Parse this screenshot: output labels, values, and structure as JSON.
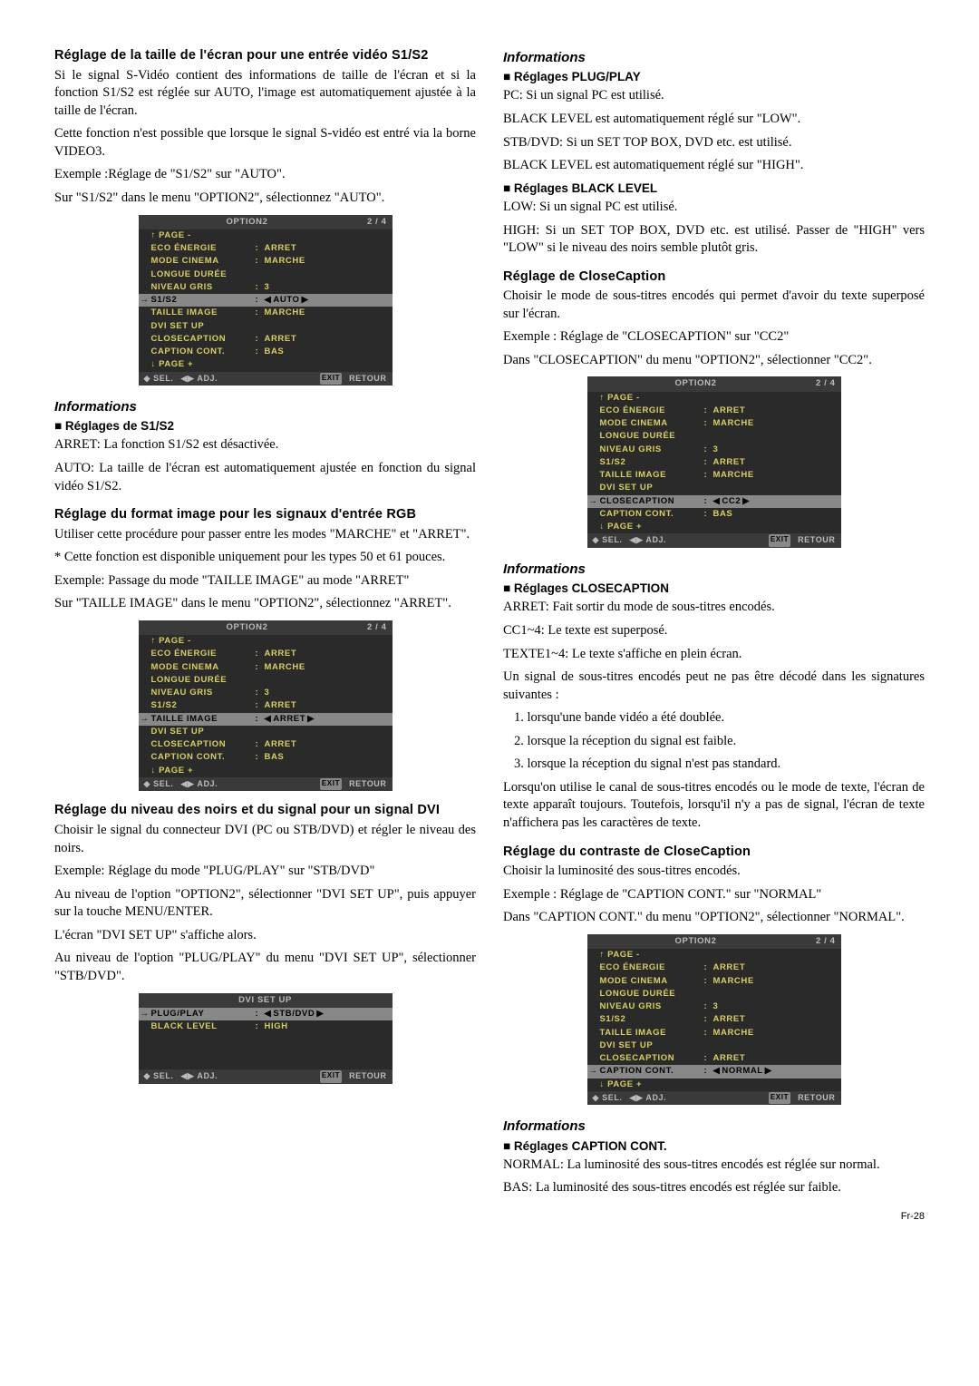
{
  "osd_common": {
    "title": "OPTION2",
    "page_indicator": "2 / 4",
    "page_minus": "↑  PAGE  -",
    "page_plus": "↓  PAGE  +",
    "foot_sel": "◆ SEL.",
    "foot_adj": "◀▶ ADJ.",
    "foot_exit_btn": "EXIT",
    "foot_exit": "RETOUR"
  },
  "left": {
    "h1": "Réglage de la taille de l'écran pour une entrée vidéo S1/S2",
    "p1": "Si le signal S-Vidéo contient des informations de taille de l'écran et si la fonction S1/S2 est réglée sur AUTO, l'image est automatiquement ajustée à la taille de l'écran.",
    "p2": "Cette fonction n'est possible que lorsque le signal S-vidéo est entré via la borne VIDEO3.",
    "p3": "Exemple :Réglage de \"S1/S2\" sur \"AUTO\".",
    "p4": "Sur \"S1/S2\" dans le menu \"OPTION2\", sélectionnez \"AUTO\".",
    "osd1": {
      "rows": [
        {
          "label": "ECO ÉNERGIE",
          "val": "ARRET",
          "y": true
        },
        {
          "label": "MODE CINEMA",
          "val": "MARCHE",
          "y": true
        },
        {
          "label": "LONGUE DURÉE",
          "val": "",
          "y": true,
          "nosep": true
        },
        {
          "label": "NIVEAU GRIS",
          "val": "3",
          "y": true
        },
        {
          "label": "S1/S2",
          "val": "AUTO",
          "sel": true
        },
        {
          "label": "TAILLE IMAGE",
          "val": "MARCHE",
          "y": true
        },
        {
          "label": "DVI SET UP",
          "val": "",
          "y": true,
          "nosep": true
        },
        {
          "label": "CLOSECAPTION",
          "val": "ARRET",
          "y": true
        },
        {
          "label": "CAPTION CONT.",
          "val": "BAS",
          "y": true
        }
      ]
    },
    "info1": "Informations",
    "sub1": "Réglages de S1/S2",
    "p5": "ARRET: La fonction S1/S2 est désactivée.",
    "p6": "AUTO:  La taille de l'écran est automatiquement ajustée en fonction du signal vidéo S1/S2.",
    "h2": "Réglage du format image pour les signaux d'entrée RGB",
    "p7": "Utiliser cette procédure pour passer entre les modes \"MARCHE\" et \"ARRET\".",
    "p8": "* Cette fonction est disponible uniquement pour les types 50 et 61 pouces.",
    "p9": "Exemple: Passage du mode \"TAILLE IMAGE\" au mode \"ARRET\"",
    "p10": "Sur \"TAILLE IMAGE\" dans le menu \"OPTION2\", sélectionnez \"ARRET\".",
    "osd2": {
      "rows": [
        {
          "label": "ECO ÉNERGIE",
          "val": "ARRET",
          "y": true
        },
        {
          "label": "MODE CINEMA",
          "val": "MARCHE",
          "y": true
        },
        {
          "label": "LONGUE DURÉE",
          "val": "",
          "y": true,
          "nosep": true
        },
        {
          "label": "NIVEAU GRIS",
          "val": "3",
          "y": true
        },
        {
          "label": "S1/S2",
          "val": "ARRET",
          "y": true
        },
        {
          "label": "TAILLE IMAGE",
          "val": "ARRET",
          "sel": true
        },
        {
          "label": "DVI SET UP",
          "val": "",
          "y": true,
          "nosep": true
        },
        {
          "label": "CLOSECAPTION",
          "val": "ARRET",
          "y": true
        },
        {
          "label": "CAPTION CONT.",
          "val": "BAS",
          "y": true
        }
      ]
    },
    "h3": "Réglage du niveau des noirs et du signal pour un signal DVI",
    "p11": "Choisir le signal du connecteur DVI (PC ou STB/DVD) et régler le niveau des noirs.",
    "p12": "Exemple: Réglage du mode \"PLUG/PLAY\" sur \"STB/DVD\"",
    "p13": "Au niveau de l'option \"OPTION2\", sélectionner \"DVI SET UP\", puis appuyer sur la touche MENU/ENTER.",
    "p14": "L'écran \"DVI SET UP\" s'affiche alors.",
    "p15": "Au niveau de l'option \"PLUG/PLAY\" du menu \"DVI SET UP\", sélectionner \"STB/DVD\".",
    "osd3": {
      "title": "DVI SET UP",
      "rows": [
        {
          "label": "PLUG/PLAY",
          "val": "STB/DVD",
          "sel": true
        },
        {
          "label": "BLACK LEVEL",
          "val": "HIGH",
          "y": true
        }
      ]
    }
  },
  "right": {
    "info1": "Informations",
    "sub1": "Réglages PLUG/PLAY",
    "p1": "PC: Si un signal PC est utilisé.",
    "p2": "BLACK LEVEL est automatiquement réglé sur \"LOW\".",
    "p3": "STB/DVD: Si un SET TOP BOX, DVD etc. est utilisé.",
    "p4": "BLACK LEVEL est automatiquement réglé sur \"HIGH\".",
    "sub2": "Réglages BLACK LEVEL",
    "p5": "LOW: Si un signal PC est utilisé.",
    "p6": "HIGH: Si un SET TOP BOX, DVD etc. est utilisé. Passer de \"HIGH\" vers \"LOW\" si le niveau des noirs semble plutôt gris.",
    "h1": "Réglage de CloseCaption",
    "p7": "Choisir le mode de sous-titres encodés qui permet d'avoir du texte superposé sur l'écran.",
    "p8": "Exemple : Réglage de \"CLOSECAPTION\" sur \"CC2\"",
    "p9": "Dans \"CLOSECAPTION\" du menu \"OPTION2\", sélectionner \"CC2\".",
    "osd1": {
      "rows": [
        {
          "label": "ECO ÉNERGIE",
          "val": "ARRET",
          "y": true
        },
        {
          "label": "MODE CINEMA",
          "val": "MARCHE",
          "y": true
        },
        {
          "label": "LONGUE DURÉE",
          "val": "",
          "y": true,
          "nosep": true
        },
        {
          "label": "NIVEAU GRIS",
          "val": "3",
          "y": true
        },
        {
          "label": "S1/S2",
          "val": "ARRET",
          "y": true
        },
        {
          "label": "TAILLE IMAGE",
          "val": "MARCHE",
          "y": true
        },
        {
          "label": "DVI SET UP",
          "val": "",
          "y": true,
          "nosep": true
        },
        {
          "label": "CLOSECAPTION",
          "val": "CC2",
          "sel": true
        },
        {
          "label": "CAPTION CONT.",
          "val": "BAS",
          "y": true
        }
      ]
    },
    "info2": "Informations",
    "sub3": "Réglages CLOSECAPTION",
    "p10": "ARRET: Fait sortir du mode de sous-titres encodés.",
    "p11": "CC1~4: Le texte est superposé.",
    "p12": "TEXTE1~4: Le texte s'affiche en plein écran.",
    "p13": "Un signal de sous-titres encodés peut ne pas être décodé dans les signatures suivantes :",
    "li1": "1. lorsqu'une bande vidéo a été doublée.",
    "li2": "2. lorsque la réception du signal est faible.",
    "li3": "3. lorsque la réception du signal n'est pas standard.",
    "p14": "Lorsqu'on utilise le canal de sous-titres encodés ou le mode de texte, l'écran de texte apparaît toujours. Toutefois, lorsqu'il n'y a pas de signal, l'écran de texte n'affichera pas les caractères de texte.",
    "h2": "Réglage du contraste de CloseCaption",
    "p15": "Choisir la luminosité des sous-titres encodés.",
    "p16": "Exemple : Réglage de \"CAPTION CONT.\" sur \"NORMAL\"",
    "p17": "Dans \"CAPTION CONT.\" du menu \"OPTION2\", sélectionner \"NORMAL\".",
    "osd2": {
      "rows": [
        {
          "label": "ECO ÉNERGIE",
          "val": "ARRET",
          "y": true
        },
        {
          "label": "MODE CINEMA",
          "val": "MARCHE",
          "y": true
        },
        {
          "label": "LONGUE DURÉE",
          "val": "",
          "y": true,
          "nosep": true
        },
        {
          "label": "NIVEAU GRIS",
          "val": "3",
          "y": true
        },
        {
          "label": "S1/S2",
          "val": "ARRET",
          "y": true
        },
        {
          "label": "TAILLE IMAGE",
          "val": "MARCHE",
          "y": true
        },
        {
          "label": "DVI SET UP",
          "val": "",
          "y": true,
          "nosep": true
        },
        {
          "label": "CLOSECAPTION",
          "val": "ARRET",
          "y": true
        },
        {
          "label": "CAPTION CONT.",
          "val": "NORMAL",
          "sel": true
        }
      ]
    },
    "info3": "Informations",
    "sub4": "Réglages CAPTION CONT.",
    "p18": "NORMAL: La luminosité des sous-titres encodés est réglée sur normal.",
    "p19": "BAS: La luminosité des sous-titres encodés est réglée sur faible."
  },
  "pagenum": "Fr-28"
}
